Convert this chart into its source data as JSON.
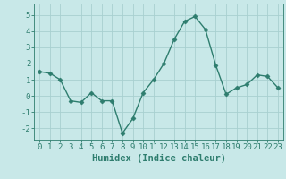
{
  "x": [
    0,
    1,
    2,
    3,
    4,
    5,
    6,
    7,
    8,
    9,
    10,
    11,
    12,
    13,
    14,
    15,
    16,
    17,
    18,
    19,
    20,
    21,
    22,
    23
  ],
  "y": [
    1.5,
    1.4,
    1.0,
    -0.3,
    -0.4,
    0.2,
    -0.3,
    -0.3,
    -2.3,
    -1.4,
    0.2,
    1.0,
    2.0,
    3.5,
    4.6,
    4.9,
    4.1,
    1.9,
    0.1,
    0.5,
    0.7,
    1.3,
    1.2,
    0.5
  ],
  "line_color": "#2e7d6e",
  "bg_color": "#c8e8e8",
  "grid_color": "#a8d0d0",
  "xlabel": "Humidex (Indice chaleur)",
  "xlim": [
    -0.5,
    23.5
  ],
  "ylim": [
    -2.7,
    5.7
  ],
  "yticks": [
    -2,
    -1,
    0,
    1,
    2,
    3,
    4,
    5
  ],
  "xticks": [
    0,
    1,
    2,
    3,
    4,
    5,
    6,
    7,
    8,
    9,
    10,
    11,
    12,
    13,
    14,
    15,
    16,
    17,
    18,
    19,
    20,
    21,
    22,
    23
  ],
  "marker": "D",
  "marker_size": 2.5,
  "line_width": 1.0,
  "xlabel_fontsize": 7.5,
  "tick_fontsize": 6.5
}
